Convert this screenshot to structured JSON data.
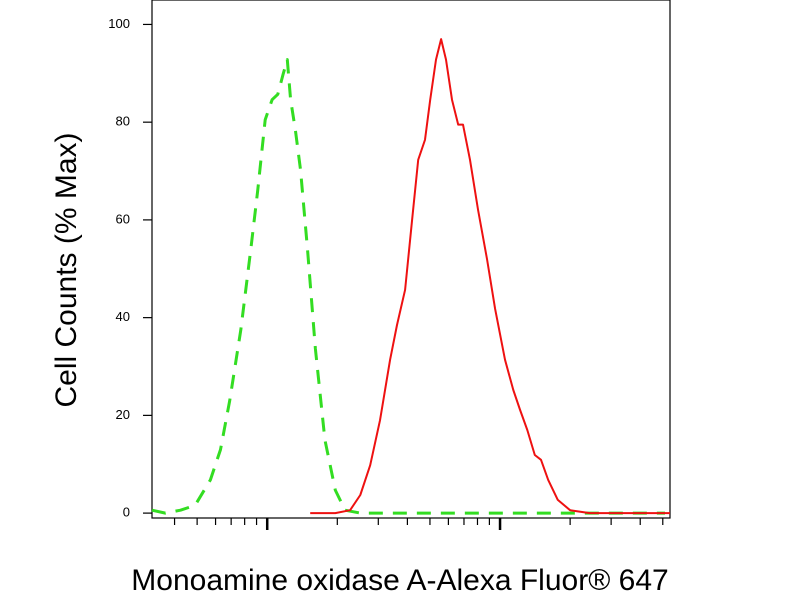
{
  "chart_data": {
    "type": "line",
    "xlabel": "Monoamine oxidase A-Alexa Fluor® 647",
    "ylabel": "Cell Counts (% Max)",
    "xscale": "log",
    "xlim": [
      3.2,
      537
    ],
    "ylim": [
      -1,
      105
    ],
    "xticks": [
      4,
      5,
      6,
      7,
      8,
      9,
      10,
      20,
      30,
      40,
      50,
      60,
      70,
      80,
      90,
      100,
      200,
      300,
      400,
      500
    ],
    "yticks": [
      0,
      20,
      40,
      60,
      80,
      100
    ],
    "series": [
      {
        "color": "#33dd22",
        "dash": true,
        "x": [
          3.2,
          3.65,
          4.24,
          4.9,
          5.7,
          6.3,
          6.9,
          7.7,
          8.5,
          9.1,
          9.8,
          10.5,
          11.1,
          11.7,
          12.2,
          12.6,
          13.2,
          13.9,
          14.9,
          16.1,
          17.7,
          19.6,
          21.6,
          25.1,
          37.2,
          269,
          511
        ],
        "values": [
          0.6,
          0,
          0.6,
          1.6,
          6.8,
          13,
          23,
          37.5,
          54,
          66,
          80.5,
          84.6,
          85.7,
          89.8,
          92.8,
          84.6,
          78.5,
          70.3,
          54,
          33.6,
          15,
          4.7,
          0.6,
          0,
          0,
          0,
          0
        ]
      },
      {
        "color": "#ee1111",
        "dash": false,
        "x": [
          15.3,
          19.6,
          22.7,
          25.1,
          27.7,
          30.5,
          33.7,
          36.1,
          39.1,
          41.9,
          44.5,
          47.6,
          50.1,
          53.1,
          55.8,
          58.6,
          62.2,
          66.1,
          69.3,
          74.3,
          80.5,
          87.9,
          95.2,
          105,
          114,
          122,
          131,
          141,
          150,
          161,
          177,
          200,
          243,
          327,
          537
        ],
        "values": [
          0,
          0,
          0.6,
          3.7,
          9.8,
          19,
          31.4,
          38.5,
          45.7,
          60,
          72.3,
          76.4,
          84.6,
          92.8,
          97,
          92.8,
          84.6,
          79.5,
          79.5,
          72.3,
          62,
          52,
          41.8,
          31.4,
          25.2,
          21.1,
          17,
          11.9,
          10.9,
          6.8,
          2.7,
          0.6,
          0,
          0,
          0
        ]
      }
    ]
  }
}
